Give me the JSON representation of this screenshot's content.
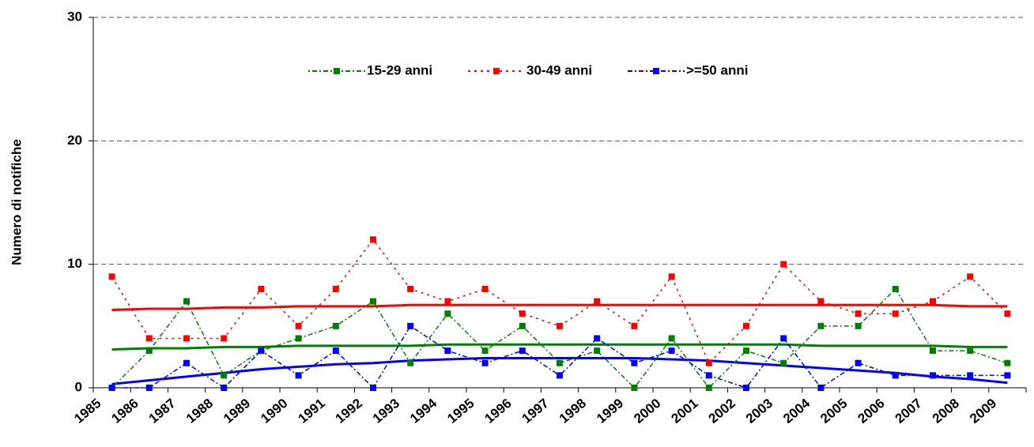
{
  "chart_data": {
    "type": "line",
    "y_label": "Numero di notifiche",
    "categories": [
      "1985",
      "1986",
      "1987",
      "1988",
      "1989",
      "1990",
      "1991",
      "1992",
      "1993",
      "1994",
      "1995",
      "1996",
      "1997",
      "1998",
      "1999",
      "2000",
      "2001",
      "2002",
      "2003",
      "2004",
      "2005",
      "2006",
      "2007",
      "2008",
      "2009"
    ],
    "series": [
      {
        "name": "15-29 anni",
        "color": "#008000",
        "values": [
          0,
          3,
          7,
          1,
          3,
          4,
          5,
          7,
          2,
          6,
          3,
          5,
          2,
          3,
          0,
          4,
          0,
          3,
          2,
          5,
          5,
          8,
          3,
          3,
          2
        ]
      },
      {
        "name": "30-49 anni",
        "color": "#ff0000",
        "values": [
          9,
          4,
          4,
          4,
          8,
          5,
          8,
          12,
          8,
          7,
          8,
          6,
          5,
          7,
          5,
          9,
          2,
          5,
          10,
          7,
          6,
          6,
          7,
          9,
          6
        ]
      },
      {
        "name": ">=50 anni",
        "color": "#0000ff",
        "values": [
          0,
          0,
          2,
          0,
          3,
          1,
          3,
          0,
          5,
          3,
          2,
          3,
          1,
          4,
          2,
          3,
          1,
          0,
          4,
          0,
          2,
          1,
          1,
          1,
          1
        ]
      }
    ],
    "trends": [
      {
        "color": "#008000",
        "values": [
          3.1,
          3.2,
          3.2,
          3.3,
          3.3,
          3.4,
          3.4,
          3.4,
          3.4,
          3.5,
          3.5,
          3.5,
          3.5,
          3.5,
          3.5,
          3.5,
          3.5,
          3.5,
          3.5,
          3.4,
          3.4,
          3.4,
          3.4,
          3.3,
          3.3
        ]
      },
      {
        "color": "#ff0000",
        "values": [
          6.3,
          6.4,
          6.4,
          6.5,
          6.5,
          6.6,
          6.6,
          6.6,
          6.7,
          6.7,
          6.7,
          6.7,
          6.7,
          6.7,
          6.7,
          6.7,
          6.7,
          6.7,
          6.7,
          6.7,
          6.7,
          6.7,
          6.7,
          6.6,
          6.6
        ]
      },
      {
        "color": "#0000ff",
        "values": [
          0.3,
          0.6,
          0.9,
          1.2,
          1.5,
          1.7,
          1.9,
          2.0,
          2.2,
          2.3,
          2.4,
          2.4,
          2.4,
          2.4,
          2.4,
          2.3,
          2.2,
          2.0,
          1.8,
          1.6,
          1.4,
          1.2,
          0.9,
          0.7,
          0.4
        ]
      }
    ],
    "ylim": [
      0,
      30
    ],
    "yticks": [
      0,
      10,
      20,
      30
    ],
    "grid": true
  }
}
